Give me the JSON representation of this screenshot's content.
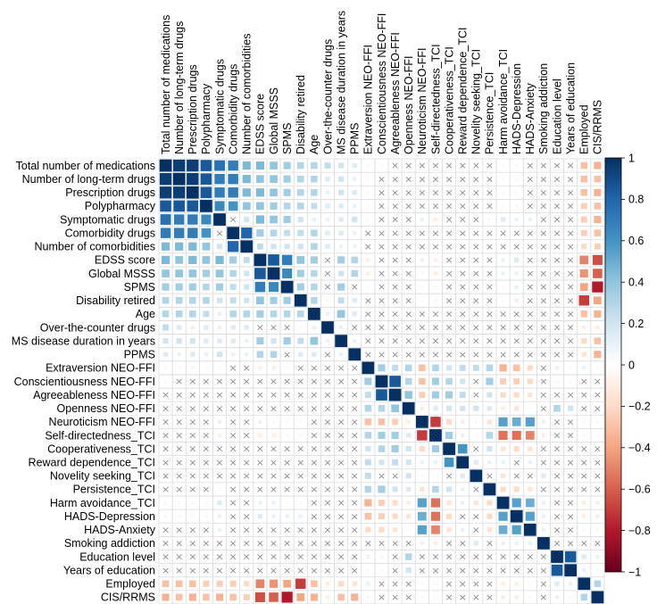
{
  "chart_data": {
    "type": "heatmap",
    "title": "",
    "variables": [
      "Total number of medications",
      "Number of long-term drugs",
      "Prescription drugs",
      "Polypharmacy",
      "Symptomatic drugs",
      "Comorbidity drugs",
      "Number of comorbidities",
      "EDSS score",
      "Global MSSS",
      "SPMS",
      "Disability retired",
      "Age",
      "Over-the-counter drugs",
      "MS disease duration in years",
      "PPMS",
      "Extraversion NEO-FFI",
      "Conscientiousness NEO-FFI",
      "Agreeableness NEO-FFI",
      "Openness NEO-FFI",
      "Neuroticism NEO-FFI",
      "Self-directedness_TCI",
      "Cooperativeness_TCI",
      "Reward dependence_TCI",
      "Novelity seeking_TCI",
      "Persistence_TCI",
      "Harm avoidance_TCI",
      "HADS-Depression",
      "HADS-Anxiety",
      "Smoking addiction",
      "Education level",
      "Years of education",
      "Employed",
      "CIS/RRMS"
    ],
    "colorbar": {
      "min": -1,
      "max": 1,
      "ticks": [
        1,
        0.8,
        0.6,
        0.4,
        0.2,
        0,
        -0.2,
        -0.4,
        -0.6,
        -0.8,
        -1
      ],
      "tick_labels": [
        "1",
        "0.8",
        "0.6",
        "0.4",
        "0.2",
        "0",
        "−0.2",
        "−0.4",
        "−0.6",
        "−0.8",
        "−1"
      ],
      "colors": [
        "#67001F",
        "#B2182B",
        "#D6604D",
        "#F4A582",
        "#FDDBC7",
        "#FFFFFF",
        "#D1E5F0",
        "#92C5DE",
        "#4393C3",
        "#2166AC",
        "#053061"
      ]
    },
    "nonsignificant_marker": "×",
    "matrix": [
      [
        1,
        0.95,
        0.95,
        0.85,
        0.75,
        0.7,
        0.45,
        0.45,
        0.4,
        0.35,
        0.3,
        0.3,
        0.25,
        0.2,
        0.15,
        0.05,
        0.05,
        0,
        0,
        0,
        0,
        0,
        0,
        0,
        0,
        0.05,
        0.05,
        0,
        0,
        0,
        0,
        -0.3,
        -0.35
      ],
      [
        0.95,
        1,
        0.95,
        0.85,
        0.7,
        0.7,
        0.45,
        0.4,
        0.4,
        0.35,
        0.3,
        0.3,
        0.15,
        0.2,
        0.1,
        0.05,
        0,
        0,
        0,
        0,
        0,
        0,
        0,
        0,
        0,
        0.05,
        0.05,
        0,
        0,
        0,
        0,
        -0.3,
        -0.3
      ],
      [
        0.95,
        0.95,
        1,
        0.85,
        0.7,
        0.7,
        0.45,
        0.45,
        0.4,
        0.35,
        0.3,
        0.3,
        0.1,
        0.2,
        0.15,
        0.05,
        0,
        0,
        0,
        0,
        0,
        0,
        0,
        0,
        0,
        0.05,
        0.05,
        0,
        0,
        0,
        0,
        -0.3,
        -0.35
      ],
      [
        0.85,
        0.85,
        0.85,
        1,
        0.65,
        0.6,
        0.4,
        0.4,
        0.35,
        0.3,
        0.3,
        0.25,
        0.15,
        0.15,
        0.1,
        0.05,
        0,
        0,
        0,
        0,
        0,
        0,
        0,
        0,
        0,
        0.05,
        0.05,
        0,
        0,
        0,
        0,
        -0.25,
        -0.3
      ],
      [
        0.75,
        0.7,
        0.7,
        0.65,
        1,
        0,
        0.2,
        0.45,
        0.4,
        0.35,
        0.2,
        0.1,
        0.1,
        0.15,
        0.2,
        -0.05,
        0,
        0,
        0,
        0.1,
        -0.1,
        0,
        0,
        0,
        -0.05,
        0.15,
        0.1,
        0.1,
        0,
        0,
        0,
        -0.25,
        -0.35
      ],
      [
        0.7,
        0.7,
        0.7,
        0.6,
        0,
        1,
        0.8,
        0.35,
        0.3,
        0.25,
        0.25,
        0.3,
        0.15,
        0.15,
        0.1,
        0,
        0,
        0,
        0,
        0,
        0,
        0,
        0,
        0,
        0,
        0,
        0,
        0,
        0,
        0,
        0,
        -0.25,
        -0.3
      ],
      [
        0.45,
        0.45,
        0.45,
        0.4,
        0.2,
        0.8,
        1,
        0.25,
        0.2,
        0.2,
        0.2,
        0.3,
        0.15,
        0.1,
        0.1,
        0,
        0,
        0,
        0,
        0,
        0,
        0,
        0,
        0,
        0,
        0,
        0,
        0,
        0,
        0,
        0,
        -0.2,
        -0.25
      ],
      [
        0.45,
        0.4,
        0.45,
        0.4,
        0.45,
        0.35,
        0.25,
        1,
        0.85,
        0.7,
        0.4,
        0.35,
        0,
        0.35,
        0.3,
        -0.1,
        0,
        0,
        0,
        0.1,
        -0.1,
        0,
        0,
        0,
        0,
        0.1,
        0.15,
        0,
        0,
        0,
        0,
        -0.5,
        -0.65
      ],
      [
        0.4,
        0.4,
        0.4,
        0.35,
        0.4,
        0.3,
        0.2,
        0.85,
        1,
        0.65,
        0.35,
        0.3,
        0,
        0.2,
        0.3,
        -0.1,
        0,
        0,
        0,
        0.05,
        -0.1,
        0,
        0,
        0,
        0,
        0.1,
        0.1,
        0,
        0,
        0,
        0,
        -0.45,
        -0.6
      ],
      [
        0.35,
        0.35,
        0.35,
        0.3,
        0.35,
        0.25,
        0.2,
        0.7,
        0.65,
        1,
        0.35,
        0.3,
        0,
        0.35,
        0,
        -0.05,
        0,
        0,
        0,
        0.05,
        -0.05,
        0,
        0,
        0,
        0,
        0.05,
        0.1,
        0,
        0,
        0,
        0,
        -0.4,
        -0.8
      ],
      [
        0.3,
        0.3,
        0.3,
        0.3,
        0.2,
        0.25,
        0.2,
        0.4,
        0.35,
        0.35,
        1,
        0.3,
        0.05,
        0.25,
        0.15,
        0,
        0,
        0,
        0,
        0.05,
        -0.05,
        0,
        0,
        0,
        0,
        0.05,
        0.1,
        0,
        0,
        0,
        0,
        -0.7,
        -0.4
      ],
      [
        0.3,
        0.3,
        0.3,
        0.25,
        0.1,
        0.3,
        0.3,
        0.35,
        0.3,
        0.3,
        0.3,
        1,
        0.1,
        0.4,
        0.15,
        0,
        0,
        0,
        0,
        0,
        0,
        0,
        0,
        0,
        0,
        0,
        0,
        0,
        0,
        0,
        0,
        -0.3,
        -0.35
      ],
      [
        0.25,
        0.15,
        0.1,
        0.15,
        0.1,
        0.15,
        0.15,
        0,
        0,
        0,
        0.05,
        0.1,
        1,
        0.1,
        0,
        0,
        0,
        0,
        0,
        0,
        0,
        0,
        0,
        0,
        0,
        0,
        0,
        0,
        0,
        0,
        0,
        -0.1,
        -0.1
      ],
      [
        0.2,
        0.2,
        0.2,
        0.15,
        0.15,
        0.15,
        0.1,
        0.35,
        0.2,
        0.35,
        0.25,
        0.4,
        0.1,
        1,
        0.1,
        0,
        0,
        0,
        0,
        0,
        0,
        0,
        0,
        0,
        0,
        0,
        0,
        0,
        0,
        0,
        0,
        -0.2,
        -0.3
      ],
      [
        0.15,
        0.1,
        0.15,
        0.1,
        0.2,
        0.1,
        0.1,
        0.3,
        0.3,
        0,
        0.15,
        0.15,
        0,
        0.1,
        1,
        0,
        0,
        0,
        0,
        0,
        0,
        0,
        0,
        0,
        0,
        0,
        0,
        0,
        0,
        0,
        0,
        -0.15,
        -0.35
      ],
      [
        0.05,
        0.05,
        0.05,
        0.05,
        -0.05,
        0,
        0,
        -0.1,
        -0.1,
        -0.05,
        0,
        0,
        0,
        0,
        0,
        1,
        0.35,
        0.25,
        0.3,
        -0.3,
        0.3,
        0.2,
        0.25,
        0.25,
        0.3,
        -0.35,
        -0.3,
        -0.2,
        0,
        0.1,
        0.05,
        0.1,
        0.05
      ],
      [
        0.05,
        0,
        0,
        0,
        0,
        0,
        0,
        0,
        0,
        0,
        0,
        0,
        0,
        0,
        0,
        0.35,
        1,
        0.85,
        0.3,
        -0.3,
        0.35,
        0.3,
        0.2,
        0,
        0.35,
        -0.25,
        -0.25,
        -0.2,
        0,
        0.05,
        0.05,
        0,
        0
      ],
      [
        0,
        0,
        0,
        0,
        0,
        0,
        0,
        0,
        0,
        0,
        0,
        0,
        0,
        0,
        0,
        0.25,
        0.85,
        1,
        0.4,
        -0.25,
        0.35,
        0.35,
        0.25,
        0,
        0.2,
        -0.2,
        -0.2,
        -0.15,
        0,
        0,
        0,
        0,
        0
      ],
      [
        0,
        0,
        0,
        0,
        0,
        0,
        0,
        0,
        0,
        0,
        0,
        0,
        0,
        0,
        0,
        0.3,
        0.3,
        0.4,
        1,
        -0.1,
        0.15,
        0.2,
        0.2,
        0.2,
        0.15,
        -0.1,
        -0.15,
        -0.05,
        0,
        0.3,
        0.2,
        0,
        0
      ],
      [
        0,
        0,
        0,
        0,
        0.1,
        0,
        0,
        0.1,
        0.05,
        0.05,
        0.05,
        0,
        0,
        0,
        0,
        -0.3,
        -0.3,
        -0.25,
        -0.1,
        1,
        -0.7,
        -0.2,
        0.1,
        0.05,
        -0.15,
        0.55,
        0.5,
        0.55,
        0.1,
        0,
        0,
        -0.05,
        -0.05
      ],
      [
        0,
        0,
        0,
        0,
        -0.1,
        0,
        0,
        -0.1,
        -0.1,
        -0.05,
        -0.05,
        0,
        0,
        0,
        0,
        0.3,
        0.35,
        0.35,
        0.15,
        -0.7,
        1,
        0.35,
        0.1,
        -0.05,
        0.3,
        -0.55,
        -0.55,
        -0.5,
        -0.1,
        0,
        0,
        0.05,
        0.05
      ],
      [
        0,
        0,
        0,
        0,
        0,
        0,
        0,
        0,
        0,
        0,
        0,
        0,
        0,
        0,
        0,
        0.2,
        0.3,
        0.35,
        0.2,
        -0.2,
        0.35,
        1,
        0.6,
        0,
        0.2,
        -0.15,
        -0.2,
        -0.15,
        0,
        0,
        0,
        0,
        0
      ],
      [
        0,
        0,
        0,
        0,
        0,
        0,
        0,
        0,
        0,
        0,
        0,
        0,
        0,
        0,
        0,
        0.25,
        0.2,
        0.25,
        0.2,
        0.1,
        0.1,
        0.6,
        1,
        0.15,
        0.1,
        0.1,
        0,
        0.1,
        0,
        0,
        0,
        0,
        0
      ],
      [
        0,
        0,
        0,
        0,
        0,
        0,
        0,
        0,
        0,
        0,
        0,
        0,
        0,
        0,
        0,
        0.25,
        0,
        0,
        0.2,
        0.05,
        -0.05,
        0,
        0.15,
        1,
        0,
        -0.15,
        0,
        0,
        0.15,
        0,
        0,
        0,
        0
      ],
      [
        0,
        0,
        0,
        0,
        -0.05,
        0,
        0,
        0,
        0,
        0,
        0,
        0,
        0,
        0,
        0,
        0.3,
        0.35,
        0.2,
        0.15,
        -0.15,
        0.3,
        0.2,
        0.1,
        0,
        1,
        -0.2,
        -0.2,
        -0.15,
        0,
        0,
        0,
        0,
        0
      ],
      [
        0.05,
        0.05,
        0.05,
        0.05,
        0.15,
        0,
        0,
        0.1,
        0.1,
        0.05,
        0.05,
        0,
        0,
        0,
        0,
        -0.35,
        -0.25,
        -0.2,
        -0.1,
        0.55,
        -0.55,
        -0.15,
        0.1,
        -0.15,
        -0.2,
        1,
        0.55,
        0.5,
        0.1,
        0,
        0,
        -0.1,
        -0.1
      ],
      [
        0.05,
        0.05,
        0.05,
        0.05,
        0.1,
        0,
        0,
        0.15,
        0.1,
        0.1,
        0.1,
        0,
        0,
        0,
        0,
        -0.3,
        -0.25,
        -0.2,
        -0.15,
        0.5,
        -0.55,
        -0.2,
        0,
        0,
        -0.2,
        0.55,
        1,
        0.55,
        0.1,
        0,
        0,
        -0.1,
        -0.1
      ],
      [
        0,
        0,
        0,
        0,
        0.1,
        0,
        0,
        0,
        0,
        0,
        0,
        0,
        0,
        0,
        0,
        -0.2,
        -0.2,
        -0.15,
        -0.05,
        0.55,
        -0.5,
        -0.15,
        0.1,
        0,
        -0.15,
        0.5,
        0.55,
        1,
        0.1,
        0,
        0,
        -0.05,
        -0.05
      ],
      [
        0,
        0,
        0,
        0,
        0,
        0,
        0,
        0,
        0,
        0,
        0,
        0,
        0,
        0,
        0,
        0,
        0,
        0,
        0,
        0.1,
        -0.1,
        0,
        0,
        0.15,
        0,
        0.1,
        0.1,
        0.1,
        1,
        0,
        0,
        0,
        0
      ],
      [
        0,
        0,
        0,
        0,
        0,
        0,
        0,
        0,
        0,
        0,
        0,
        0,
        0,
        0,
        0,
        0.1,
        0.05,
        0,
        0.3,
        0,
        0,
        0,
        0,
        0,
        0,
        0,
        0,
        0,
        0,
        1,
        0.85,
        0.15,
        0.1
      ],
      [
        0,
        0,
        0,
        0,
        0,
        0,
        0,
        0,
        0,
        0,
        0,
        0,
        0,
        0,
        0,
        0.05,
        0.05,
        0,
        0.2,
        0,
        0,
        0,
        0,
        0,
        0,
        0,
        0,
        0,
        0,
        0.85,
        1,
        0.1,
        0.05
      ],
      [
        -0.3,
        -0.3,
        -0.3,
        -0.25,
        -0.25,
        -0.25,
        -0.2,
        -0.5,
        -0.45,
        -0.4,
        -0.7,
        -0.3,
        -0.1,
        -0.2,
        -0.15,
        0.1,
        0,
        0,
        0,
        -0.05,
        0.05,
        0,
        0,
        0,
        0,
        -0.1,
        -0.1,
        -0.05,
        0,
        0.15,
        0.1,
        1,
        0.3
      ],
      [
        -0.35,
        -0.3,
        -0.35,
        -0.3,
        -0.35,
        -0.3,
        -0.25,
        -0.65,
        -0.6,
        -0.8,
        -0.4,
        -0.35,
        -0.1,
        -0.3,
        -0.35,
        0.05,
        0,
        0,
        0,
        -0.05,
        0.05,
        0,
        0,
        0,
        0,
        -0.1,
        -0.1,
        -0.05,
        0,
        0.1,
        0.05,
        0.3,
        1
      ]
    ]
  }
}
